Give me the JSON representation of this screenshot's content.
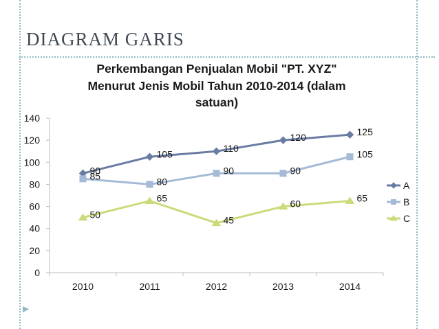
{
  "slide": {
    "title": "DIAGRAM GARIS"
  },
  "colors": {
    "A": "#6a7ca3",
    "B": "#a4bad6",
    "C": "#ccda7a",
    "grid": "#c8c8c8",
    "accent": "#8fb9c2"
  },
  "chart_data": {
    "type": "line",
    "title_lines": [
      "Perkembangan Penjualan Mobil \"PT. XYZ\"",
      "Menurut Jenis Mobil Tahun 2010-2014 (dalam",
      "satuan)"
    ],
    "categories": [
      "2010",
      "2011",
      "2012",
      "2013",
      "2014"
    ],
    "series": [
      {
        "name": "A",
        "values": [
          90,
          105,
          110,
          120,
          125
        ],
        "marker": "diamond"
      },
      {
        "name": "B",
        "values": [
          85,
          80,
          90,
          90,
          105
        ],
        "marker": "square"
      },
      {
        "name": "C",
        "values": [
          50,
          65,
          45,
          60,
          65
        ],
        "marker": "triangle"
      }
    ],
    "ylim": [
      0,
      140
    ],
    "yticks": [
      0,
      20,
      40,
      60,
      80,
      100,
      120,
      140
    ],
    "grid": false,
    "legend": "right"
  }
}
